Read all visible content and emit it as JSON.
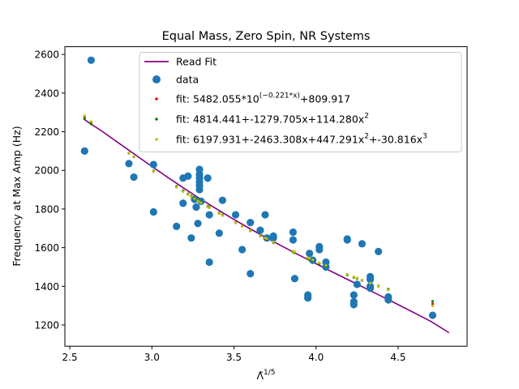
{
  "chart_data": {
    "type": "scatter",
    "title": "Equal Mass, Zero Spin, NR Systems",
    "xlabel_base": "Λ̃",
    "xlabel_exp": "1/5",
    "ylabel": "Frequency at Max Amp (Hz)",
    "xlim": [
      2.47,
      4.92
    ],
    "ylim": [
      1090,
      2640
    ],
    "xticks": [
      2.5,
      3.0,
      3.5,
      4.0,
      4.5
    ],
    "xtick_labels": [
      "2.5",
      "3.0",
      "3.5",
      "4.0",
      "4.5"
    ],
    "yticks": [
      1200,
      1400,
      1600,
      1800,
      2000,
      2200,
      2400,
      2600
    ],
    "ytick_labels": [
      "1200",
      "1400",
      "1600",
      "1800",
      "2000",
      "2200",
      "2400",
      "2600"
    ],
    "grid": false,
    "legend_position": "top-center",
    "legend": [
      {
        "key": "read_fit",
        "label": "Read Fit"
      },
      {
        "key": "data",
        "label": "data"
      },
      {
        "key": "fit_exp",
        "label_pre": "fit: 5482.055*10",
        "label_sup": "(−0.221*x)",
        "label_post": "+809.917"
      },
      {
        "key": "fit_quad",
        "label_pre": "fit: 4814.441+-1279.705x+114.280x",
        "label_sup": "2",
        "label_post": ""
      },
      {
        "key": "fit_cubic",
        "label_pre": "fit: 6197.931+-2463.308x+447.291x",
        "label_sup": "2",
        "label_post": "+-30.816x",
        "label_sup2": "3"
      }
    ],
    "colors": {
      "read_fit": "#800080",
      "data": "#1f77b4",
      "fit_exp": "#ff0000",
      "fit_quad": "#008000",
      "fit_cubic": "#bfbf00"
    },
    "read_fit_curve": {
      "x": [
        2.59,
        2.7,
        2.8,
        2.9,
        3.0,
        3.1,
        3.2,
        3.3,
        3.4,
        3.5,
        3.6,
        3.7,
        3.8,
        3.9,
        4.0,
        4.1,
        4.2,
        4.3,
        4.4,
        4.5,
        4.6,
        4.7,
        4.81
      ],
      "y": [
        2262,
        2200,
        2140,
        2080,
        2020,
        1962,
        1905,
        1850,
        1797,
        1746,
        1697,
        1650,
        1604,
        1560,
        1517,
        1474,
        1432,
        1390,
        1348,
        1305,
        1262,
        1218,
        1160
      ]
    },
    "data_points": [
      {
        "x": 2.59,
        "y": 2100
      },
      {
        "x": 2.63,
        "y": 2570
      },
      {
        "x": 2.86,
        "y": 2035
      },
      {
        "x": 2.89,
        "y": 1965
      },
      {
        "x": 3.01,
        "y": 2030
      },
      {
        "x": 3.01,
        "y": 1785
      },
      {
        "x": 3.15,
        "y": 1710
      },
      {
        "x": 3.19,
        "y": 1960
      },
      {
        "x": 3.19,
        "y": 1830
      },
      {
        "x": 3.22,
        "y": 1970
      },
      {
        "x": 3.24,
        "y": 1650
      },
      {
        "x": 3.26,
        "y": 1850
      },
      {
        "x": 3.27,
        "y": 1810
      },
      {
        "x": 3.28,
        "y": 1725
      },
      {
        "x": 3.29,
        "y": 2005
      },
      {
        "x": 3.29,
        "y": 1980
      },
      {
        "x": 3.29,
        "y": 1960
      },
      {
        "x": 3.29,
        "y": 1940
      },
      {
        "x": 3.29,
        "y": 1920
      },
      {
        "x": 3.29,
        "y": 1900
      },
      {
        "x": 3.3,
        "y": 1840
      },
      {
        "x": 3.34,
        "y": 1960
      },
      {
        "x": 3.35,
        "y": 1770
      },
      {
        "x": 3.35,
        "y": 1525
      },
      {
        "x": 3.41,
        "y": 1675
      },
      {
        "x": 3.43,
        "y": 1845
      },
      {
        "x": 3.51,
        "y": 1770
      },
      {
        "x": 3.55,
        "y": 1590
      },
      {
        "x": 3.6,
        "y": 1730
      },
      {
        "x": 3.6,
        "y": 1465
      },
      {
        "x": 3.66,
        "y": 1690
      },
      {
        "x": 3.69,
        "y": 1770
      },
      {
        "x": 3.7,
        "y": 1650
      },
      {
        "x": 3.74,
        "y": 1660
      },
      {
        "x": 3.74,
        "y": 1650
      },
      {
        "x": 3.86,
        "y": 1680
      },
      {
        "x": 3.86,
        "y": 1640
      },
      {
        "x": 3.87,
        "y": 1440
      },
      {
        "x": 3.95,
        "y": 1355
      },
      {
        "x": 3.95,
        "y": 1340
      },
      {
        "x": 3.96,
        "y": 1570
      },
      {
        "x": 3.98,
        "y": 1535
      },
      {
        "x": 4.02,
        "y": 1605
      },
      {
        "x": 4.02,
        "y": 1590
      },
      {
        "x": 4.06,
        "y": 1525
      },
      {
        "x": 4.06,
        "y": 1500
      },
      {
        "x": 4.19,
        "y": 1645
      },
      {
        "x": 4.19,
        "y": 1640
      },
      {
        "x": 4.23,
        "y": 1355
      },
      {
        "x": 4.23,
        "y": 1320
      },
      {
        "x": 4.23,
        "y": 1305
      },
      {
        "x": 4.25,
        "y": 1410
      },
      {
        "x": 4.28,
        "y": 1620
      },
      {
        "x": 4.33,
        "y": 1450
      },
      {
        "x": 4.33,
        "y": 1435
      },
      {
        "x": 4.33,
        "y": 1400
      },
      {
        "x": 4.33,
        "y": 1390
      },
      {
        "x": 4.38,
        "y": 1580
      },
      {
        "x": 4.44,
        "y": 1345
      },
      {
        "x": 4.44,
        "y": 1330
      },
      {
        "x": 4.71,
        "y": 1250
      }
    ],
    "fit_x": [
      2.59,
      2.63,
      2.86,
      2.89,
      3.01,
      3.15,
      3.19,
      3.22,
      3.24,
      3.26,
      3.28,
      3.29,
      3.3,
      3.34,
      3.35,
      3.41,
      3.43,
      3.51,
      3.55,
      3.6,
      3.66,
      3.69,
      3.7,
      3.74,
      3.86,
      3.87,
      3.95,
      3.96,
      3.98,
      4.02,
      4.06,
      4.19,
      4.23,
      4.25,
      4.28,
      4.33,
      4.38,
      4.44,
      4.71
    ],
    "fit_coefficients": {
      "fit_exp": [
        5482.055,
        -0.221,
        809.917
      ],
      "fit_quad": [
        4814.441,
        -1279.705,
        114.28
      ],
      "fit_cubic": [
        6197.931,
        -2463.308,
        447.291,
        -30.816
      ]
    }
  }
}
